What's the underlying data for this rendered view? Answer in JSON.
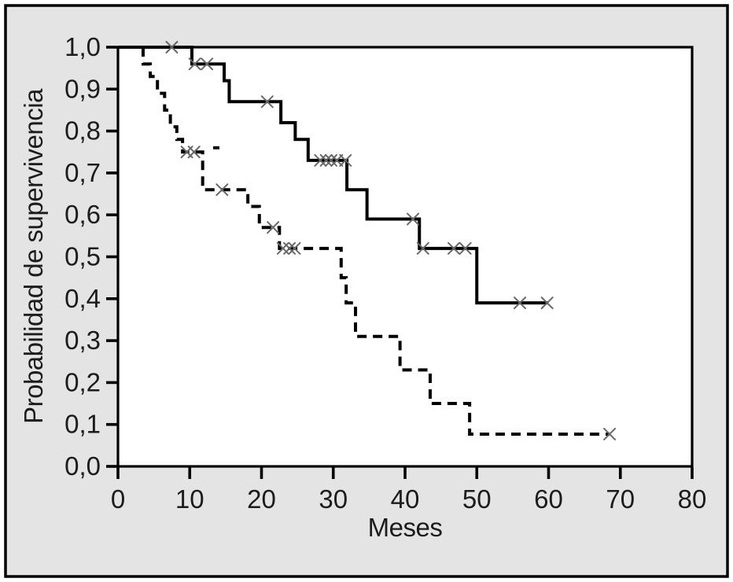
{
  "figure": {
    "background_color": "#e4e4e4",
    "plot_background_color": "#ffffff",
    "frame_color": "#000000",
    "text_color": "#1c1c1c",
    "censor_mark_color": "#686868"
  },
  "chart_data": {
    "type": "line",
    "subtype": "kaplan-meier-step-curves",
    "title": "",
    "xlabel": "Meses",
    "ylabel": "Probabilidad de supervivencia",
    "xlim": [
      0,
      80
    ],
    "ylim": [
      0.0,
      1.0
    ],
    "grid": false,
    "legend_position": "none",
    "xticks": [
      0,
      10,
      20,
      30,
      40,
      50,
      60,
      70,
      80
    ],
    "yticks": [
      {
        "value": 0.0,
        "label": "0,0"
      },
      {
        "value": 0.1,
        "label": "0,1"
      },
      {
        "value": 0.2,
        "label": "0,2"
      },
      {
        "value": 0.3,
        "label": "0,3"
      },
      {
        "value": 0.4,
        "label": "0,4"
      },
      {
        "value": 0.5,
        "label": "0,5"
      },
      {
        "value": 0.6,
        "label": "0,6"
      },
      {
        "value": 0.7,
        "label": "0,7"
      },
      {
        "value": 0.8,
        "label": "0,8"
      },
      {
        "value": 0.9,
        "label": "0,9"
      },
      {
        "value": 1.0,
        "label": "1,0"
      }
    ],
    "censor_marker": {
      "glyph": "x",
      "color": "#686868",
      "half_size_px": 7
    },
    "series": [
      {
        "name": "survival-group-solid",
        "line_style": "solid",
        "color": "#000000",
        "steps": [
          [
            0,
            1.0
          ],
          [
            10.3,
            0.96
          ],
          [
            14.8,
            0.92
          ],
          [
            15.5,
            0.87
          ],
          [
            22.7,
            0.82
          ],
          [
            24.7,
            0.78
          ],
          [
            26.5,
            0.73
          ],
          [
            31.9,
            0.66
          ],
          [
            34.7,
            0.59
          ],
          [
            42.0,
            0.52
          ],
          [
            50.0,
            0.39
          ]
        ],
        "end_month": 60.0,
        "censor_marks": [
          [
            7.5,
            1.0
          ],
          [
            10.7,
            0.96
          ],
          [
            12.4,
            0.96
          ],
          [
            20.8,
            0.87
          ],
          [
            28.2,
            0.73
          ],
          [
            29.0,
            0.73
          ],
          [
            29.7,
            0.73
          ],
          [
            30.5,
            0.73
          ],
          [
            31.7,
            0.73
          ],
          [
            41.1,
            0.59
          ],
          [
            42.5,
            0.52
          ],
          [
            46.8,
            0.52
          ],
          [
            48.4,
            0.52
          ],
          [
            56.0,
            0.39
          ],
          [
            59.8,
            0.39
          ]
        ]
      },
      {
        "name": "survival-group-dashed",
        "line_style": "dashed",
        "color": "#000000",
        "steps": [
          [
            3.5,
            1.0
          ],
          [
            3.5,
            0.96
          ],
          [
            4.5,
            0.93
          ],
          [
            5.5,
            0.89
          ],
          [
            6.5,
            0.85
          ],
          [
            7.3,
            0.81
          ],
          [
            8.2,
            0.78
          ],
          [
            9.0,
            0.75
          ],
          [
            11.8,
            0.66
          ],
          [
            18.1,
            0.62
          ],
          [
            19.7,
            0.57
          ],
          [
            22.5,
            0.52
          ],
          [
            31.1,
            0.45
          ],
          [
            31.8,
            0.39
          ],
          [
            33.1,
            0.31
          ],
          [
            39.3,
            0.23
          ],
          [
            43.5,
            0.15
          ],
          [
            49.0,
            0.077
          ]
        ],
        "end_month": 68.5,
        "censor_marks": [
          [
            9.6,
            0.75
          ],
          [
            10.6,
            0.75
          ],
          [
            14.5,
            0.66
          ],
          [
            21.6,
            0.57
          ],
          [
            23.0,
            0.52
          ],
          [
            23.9,
            0.52
          ],
          [
            24.6,
            0.52
          ],
          [
            68.5,
            0.077
          ]
        ]
      }
    ],
    "stray_marks": [
      {
        "month": 13.7,
        "prob": 0.76
      }
    ]
  }
}
